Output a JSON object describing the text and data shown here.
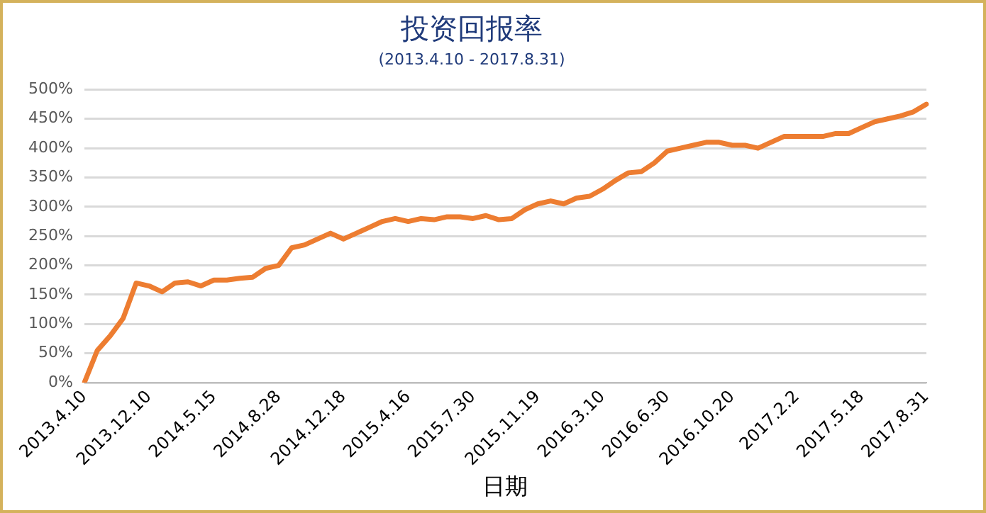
{
  "chart_data": {
    "type": "line",
    "title": "投资回报率",
    "subtitle": "(2013.4.10 - 2017.8.31)",
    "xlabel": "日期",
    "categories": [
      "2013.4.10",
      null,
      null,
      null,
      null,
      "2013.12.10",
      null,
      null,
      null,
      null,
      "2014.5.15",
      null,
      null,
      null,
      null,
      "2014.8.28",
      null,
      null,
      null,
      null,
      "2014.12.18",
      null,
      null,
      null,
      null,
      "2015.4.16",
      null,
      null,
      null,
      null,
      "2015.7.30",
      null,
      null,
      null,
      null,
      "2015.11.19",
      null,
      null,
      null,
      null,
      "2016.3.10",
      null,
      null,
      null,
      null,
      "2016.6.30",
      null,
      null,
      null,
      null,
      "2016.10.20",
      null,
      null,
      null,
      null,
      "2017.2.2",
      null,
      null,
      null,
      null,
      "2017.5.18",
      null,
      null,
      null,
      null,
      "2017.8.31"
    ],
    "series": [
      {
        "color": "#ed7d31",
        "values": [
          0,
          55,
          80,
          110,
          170,
          165,
          155,
          170,
          172,
          165,
          175,
          175,
          178,
          180,
          195,
          200,
          230,
          235,
          245,
          255,
          245,
          255,
          265,
          275,
          280,
          275,
          280,
          278,
          283,
          283,
          280,
          285,
          278,
          280,
          295,
          305,
          310,
          305,
          315,
          318,
          330,
          345,
          358,
          360,
          375,
          395,
          400,
          405,
          410,
          410,
          405,
          405,
          400,
          410,
          420,
          420,
          420,
          420,
          425,
          425,
          435,
          445,
          450,
          455,
          462,
          475
        ]
      }
    ],
    "ylim": [
      0,
      500
    ],
    "yticks": [
      {
        "value": 0,
        "label": "0%"
      },
      {
        "value": 50,
        "label": "50%"
      },
      {
        "value": 100,
        "label": "100%"
      },
      {
        "value": 150,
        "label": "150%"
      },
      {
        "value": 200,
        "label": "200%"
      },
      {
        "value": 250,
        "label": "250%"
      },
      {
        "value": 300,
        "label": "300%"
      },
      {
        "value": 350,
        "label": "350%"
      },
      {
        "value": 400,
        "label": "400%"
      },
      {
        "value": 450,
        "label": "450%"
      },
      {
        "value": 500,
        "label": "500%"
      }
    ],
    "grid": "y",
    "legend": false,
    "marker": "none",
    "line_style": "solid"
  }
}
